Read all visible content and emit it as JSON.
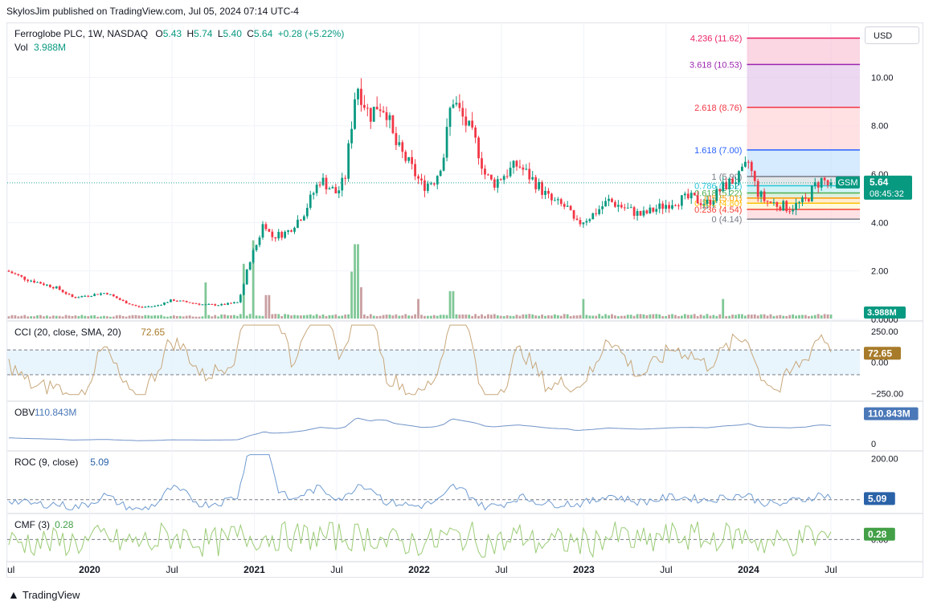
{
  "header": {
    "published": "SkylosJim published on TradingView.com, Jul 05, 2024 07:14 UTC-4"
  },
  "currency_button": "USD",
  "footer": {
    "brand": "TradingView"
  },
  "colors": {
    "up": "#089981",
    "down": "#f23645",
    "vol_up": "#7fc796",
    "vol_down": "#c99ea0",
    "cci": "#c8a77a",
    "obv": "#7193c9",
    "roc": "#6f9bd1",
    "cmf": "#9bcc76",
    "price_line": "#26a69a"
  },
  "legend": {
    "title": "Ferroglobe PLC, 1W, NASDAQ",
    "open_label": "O",
    "open": "5.43",
    "high_label": "H",
    "high": "5.74",
    "low_label": "L",
    "low": "5.40",
    "close_label": "C",
    "close": "5.64",
    "change": "+0.28 (+5.22%)",
    "vol_label": "Vol",
    "vol_value": "3.988M"
  },
  "chart_data": {
    "type": "candlestick",
    "symbol": "GSM",
    "price_axis": {
      "ticks": [
        "10.00",
        "8.00",
        "6.00",
        "4.00",
        "2.00",
        "0.0000"
      ],
      "range": [
        0,
        12.2
      ]
    },
    "x_ticks": [
      "ul",
      "2020",
      "Jul",
      "2021",
      "Jul",
      "2022",
      "Jul",
      "2023",
      "Jul",
      "2024",
      "Jul"
    ],
    "last_price_label": "5.64",
    "countdown": "08:45:32",
    "volume_label": "3.988M",
    "price_path": [
      [
        2019.5,
        2.0
      ],
      [
        2019.6,
        1.7
      ],
      [
        2019.7,
        1.5
      ],
      [
        2019.8,
        1.3
      ],
      [
        2019.9,
        0.9
      ],
      [
        2020.0,
        1.0
      ],
      [
        2020.1,
        1.1
      ],
      [
        2020.2,
        0.75
      ],
      [
        2020.3,
        0.5
      ],
      [
        2020.4,
        0.55
      ],
      [
        2020.5,
        0.8
      ],
      [
        2020.6,
        0.7
      ],
      [
        2020.7,
        0.6
      ],
      [
        2020.8,
        0.6
      ],
      [
        2020.9,
        0.7
      ],
      [
        2020.93,
        1.3
      ],
      [
        2020.97,
        2.4
      ],
      [
        2021.02,
        3.2
      ],
      [
        2021.06,
        4.1
      ],
      [
        2021.1,
        3.4
      ],
      [
        2021.2,
        3.6
      ],
      [
        2021.3,
        4.4
      ],
      [
        2021.4,
        5.8
      ],
      [
        2021.5,
        5.2
      ],
      [
        2021.55,
        5.8
      ],
      [
        2021.62,
        9.8
      ],
      [
        2021.7,
        8.4
      ],
      [
        2021.75,
        8.9
      ],
      [
        2021.8,
        8.7
      ],
      [
        2021.85,
        7.3
      ],
      [
        2021.95,
        6.3
      ],
      [
        2022.02,
        5.5
      ],
      [
        2022.1,
        5.8
      ],
      [
        2022.15,
        6.8
      ],
      [
        2022.2,
        9.2
      ],
      [
        2022.25,
        8.5
      ],
      [
        2022.3,
        7.9
      ],
      [
        2022.35,
        7.2
      ],
      [
        2022.4,
        6.0
      ],
      [
        2022.45,
        5.6
      ],
      [
        2022.5,
        5.9
      ],
      [
        2022.6,
        6.4
      ],
      [
        2022.7,
        5.7
      ],
      [
        2022.8,
        4.9
      ],
      [
        2022.9,
        4.6
      ],
      [
        2022.95,
        3.9
      ],
      [
        2023.05,
        4.3
      ],
      [
        2023.15,
        4.9
      ],
      [
        2023.25,
        4.6
      ],
      [
        2023.35,
        4.3
      ],
      [
        2023.45,
        4.6
      ],
      [
        2023.55,
        4.9
      ],
      [
        2023.65,
        5.0
      ],
      [
        2023.75,
        4.8
      ],
      [
        2023.85,
        5.5
      ],
      [
        2023.95,
        5.9
      ],
      [
        2024.0,
        6.5
      ],
      [
        2024.05,
        5.3
      ],
      [
        2024.1,
        4.9
      ],
      [
        2024.2,
        4.7
      ],
      [
        2024.25,
        4.6
      ],
      [
        2024.35,
        4.9
      ],
      [
        2024.4,
        5.5
      ],
      [
        2024.45,
        5.8
      ],
      [
        2024.5,
        5.4
      ],
      [
        2024.51,
        5.64
      ]
    ],
    "volume_spikes": [
      [
        2020.7,
        0.6
      ],
      [
        2020.93,
        0.7
      ],
      [
        2021.0,
        1.0
      ],
      [
        2021.08,
        0.3
      ],
      [
        2021.6,
        0.6
      ],
      [
        2021.62,
        0.95
      ],
      [
        2021.65,
        0.4
      ],
      [
        2022.0,
        0.25
      ],
      [
        2022.2,
        0.35
      ],
      [
        2023.0,
        0.25
      ],
      [
        2023.85,
        0.25
      ]
    ],
    "fib_levels": [
      {
        "label": "4.236 (11.62)",
        "value": 11.62,
        "color": "#e91e63"
      },
      {
        "label": "3.618 (10.53)",
        "value": 10.53,
        "color": "#9c27b0"
      },
      {
        "label": "2.618 (8.76)",
        "value": 8.76,
        "color": "#f23645"
      },
      {
        "label": "1.618 (7.00)",
        "value": 7.0,
        "color": "#2962ff"
      },
      {
        "label": "1 (5.90)",
        "value": 5.9,
        "color": "#787b86"
      },
      {
        "label": "0.786 (5.52)",
        "value": 5.52,
        "color": "#26c6da"
      },
      {
        "label": "0.618 (5.22)",
        "value": 5.22,
        "color": "#4caf50"
      },
      {
        "label": "0.5 (5.01)",
        "value": 5.01,
        "color": "#ff9800"
      },
      {
        "label": "0.382 (4.80)",
        "value": 4.8,
        "color": "#ffc107"
      },
      {
        "label": "0.236 (4.54)",
        "value": 4.54,
        "color": "#f44336"
      },
      {
        "label": "0 (4.14)",
        "value": 4.14,
        "color": "#787b86"
      }
    ],
    "indicators": [
      {
        "key": "cci",
        "legend": "CCI (20, close, SMA, 20)",
        "value": "72.65",
        "ticks": [
          "250.00",
          "0.00",
          "−250.00"
        ],
        "range": [
          -300,
          320
        ],
        "ref_lines": [
          100,
          -100
        ],
        "badge_bg": "#a87b2a"
      },
      {
        "key": "obv",
        "legend": "OBV",
        "value": "110.843M",
        "ticks": [
          "0"
        ],
        "range": [
          -20,
          150
        ],
        "ref_lines": [],
        "badge_bg": "#4a78b8"
      },
      {
        "key": "roc",
        "legend": "ROC (9, close)",
        "value": "5.09",
        "ticks": [
          "200.00"
        ],
        "range": [
          -60,
          230
        ],
        "ref_lines": [
          0
        ],
        "badge_bg": "#2a62a8"
      },
      {
        "key": "cmf",
        "legend": "CMF (3)",
        "value": "0.28",
        "ticks": [
          "0.00"
        ],
        "range": [
          -1.1,
          1.3
        ],
        "ref_lines": [
          0
        ],
        "badge_bg": "#43a047"
      }
    ]
  }
}
